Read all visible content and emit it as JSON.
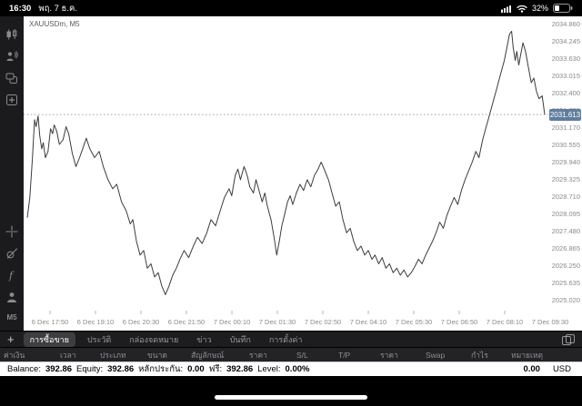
{
  "status_bar": {
    "time": "16:30",
    "date": "พฤ. 7 ธ.ค.",
    "battery_percent": "32%"
  },
  "sidebar": {
    "timeframe": "M5",
    "icons": [
      "bar-chart",
      "broadcast-user",
      "chat",
      "add-window",
      "crosshair",
      "objects",
      "indicators",
      "profile"
    ]
  },
  "chart": {
    "symbol_label": "XAUUSDm, M5"
  },
  "chart_data": {
    "type": "line",
    "title": "XAUUSDm, M5",
    "current_price": "2031.613",
    "ylim": [
      2024.5,
      2035.11
    ],
    "grid": "off",
    "legend": "none",
    "y_ticks": [
      "2034.860",
      "2034.245",
      "2033.630",
      "2033.015",
      "2032.400",
      "2031.785",
      "2031.170",
      "2030.555",
      "2029.940",
      "2029.325",
      "2028.710",
      "2028.095",
      "2027.480",
      "2026.865",
      "2026.250",
      "2025.635",
      "2025.020"
    ],
    "x_ticks": [
      "6 Dec 17:50",
      "6 Dec 19:10",
      "6 Dec 20:30",
      "6 Dec 21:50",
      "7 Dec 00:10",
      "7 Dec 01:30",
      "7 Dec 02:50",
      "7 Dec 04:10",
      "7 Dec 05:30",
      "7 Dec 06:50",
      "7 Dec 08:10",
      "7 Dec 09:30"
    ],
    "series": [
      {
        "name": "XAUUSDm close (M5)",
        "points": [
          [
            0.0,
            2027.94
          ],
          [
            0.005,
            2028.66
          ],
          [
            0.01,
            2030.08
          ],
          [
            0.014,
            2031.43
          ],
          [
            0.017,
            2031.18
          ],
          [
            0.021,
            2031.56
          ],
          [
            0.024,
            2030.86
          ],
          [
            0.028,
            2030.39
          ],
          [
            0.031,
            2030.61
          ],
          [
            0.035,
            2030.08
          ],
          [
            0.04,
            2030.3
          ],
          [
            0.045,
            2031.11
          ],
          [
            0.049,
            2030.93
          ],
          [
            0.052,
            2031.24
          ],
          [
            0.057,
            2031.02
          ],
          [
            0.062,
            2030.55
          ],
          [
            0.069,
            2030.71
          ],
          [
            0.075,
            2031.18
          ],
          [
            0.08,
            2030.93
          ],
          [
            0.087,
            2030.23
          ],
          [
            0.094,
            2029.76
          ],
          [
            0.101,
            2030.08
          ],
          [
            0.107,
            2030.39
          ],
          [
            0.114,
            2030.77
          ],
          [
            0.121,
            2030.39
          ],
          [
            0.13,
            2030.08
          ],
          [
            0.139,
            2030.3
          ],
          [
            0.147,
            2029.76
          ],
          [
            0.156,
            2029.29
          ],
          [
            0.165,
            2028.97
          ],
          [
            0.173,
            2029.13
          ],
          [
            0.182,
            2028.5
          ],
          [
            0.191,
            2028.19
          ],
          [
            0.199,
            2027.72
          ],
          [
            0.204,
            2027.87
          ],
          [
            0.211,
            2027.09
          ],
          [
            0.218,
            2026.61
          ],
          [
            0.225,
            2026.77
          ],
          [
            0.232,
            2026.14
          ],
          [
            0.239,
            2026.3
          ],
          [
            0.246,
            2025.83
          ],
          [
            0.253,
            2025.98
          ],
          [
            0.26,
            2025.51
          ],
          [
            0.267,
            2025.2
          ],
          [
            0.274,
            2025.51
          ],
          [
            0.281,
            2025.89
          ],
          [
            0.288,
            2026.14
          ],
          [
            0.295,
            2026.46
          ],
          [
            0.303,
            2026.77
          ],
          [
            0.312,
            2026.52
          ],
          [
            0.321,
            2026.93
          ],
          [
            0.329,
            2027.24
          ],
          [
            0.338,
            2027.02
          ],
          [
            0.347,
            2027.4
          ],
          [
            0.355,
            2027.87
          ],
          [
            0.364,
            2027.65
          ],
          [
            0.373,
            2028.19
          ],
          [
            0.381,
            2028.66
          ],
          [
            0.39,
            2028.97
          ],
          [
            0.395,
            2028.72
          ],
          [
            0.402,
            2029.45
          ],
          [
            0.407,
            2029.67
          ],
          [
            0.412,
            2029.29
          ],
          [
            0.419,
            2029.76
          ],
          [
            0.425,
            2029.45
          ],
          [
            0.43,
            2029.04
          ],
          [
            0.437,
            2028.82
          ],
          [
            0.442,
            2029.29
          ],
          [
            0.447,
            2028.97
          ],
          [
            0.454,
            2028.5
          ],
          [
            0.459,
            2028.82
          ],
          [
            0.464,
            2028.35
          ],
          [
            0.471,
            2027.87
          ],
          [
            0.477,
            2027.24
          ],
          [
            0.482,
            2026.61
          ],
          [
            0.487,
            2027.09
          ],
          [
            0.492,
            2027.65
          ],
          [
            0.497,
            2028.03
          ],
          [
            0.503,
            2028.5
          ],
          [
            0.508,
            2028.72
          ],
          [
            0.513,
            2028.41
          ],
          [
            0.52,
            2028.82
          ],
          [
            0.527,
            2029.13
          ],
          [
            0.534,
            2028.91
          ],
          [
            0.541,
            2029.29
          ],
          [
            0.548,
            2029.04
          ],
          [
            0.555,
            2029.45
          ],
          [
            0.562,
            2029.67
          ],
          [
            0.568,
            2029.92
          ],
          [
            0.575,
            2029.61
          ],
          [
            0.582,
            2029.29
          ],
          [
            0.589,
            2028.82
          ],
          [
            0.596,
            2028.35
          ],
          [
            0.603,
            2028.5
          ],
          [
            0.61,
            2027.87
          ],
          [
            0.617,
            2027.4
          ],
          [
            0.624,
            2027.56
          ],
          [
            0.631,
            2027.09
          ],
          [
            0.638,
            2026.77
          ],
          [
            0.645,
            2026.93
          ],
          [
            0.652,
            2026.61
          ],
          [
            0.659,
            2026.77
          ],
          [
            0.666,
            2026.46
          ],
          [
            0.672,
            2026.61
          ],
          [
            0.679,
            2026.3
          ],
          [
            0.686,
            2026.52
          ],
          [
            0.693,
            2026.14
          ],
          [
            0.7,
            2026.3
          ],
          [
            0.707,
            2025.98
          ],
          [
            0.714,
            2026.14
          ],
          [
            0.721,
            2025.89
          ],
          [
            0.728,
            2026.08
          ],
          [
            0.735,
            2025.83
          ],
          [
            0.742,
            2025.98
          ],
          [
            0.749,
            2026.2
          ],
          [
            0.756,
            2026.46
          ],
          [
            0.763,
            2026.3
          ],
          [
            0.77,
            2026.61
          ],
          [
            0.776,
            2026.83
          ],
          [
            0.783,
            2027.09
          ],
          [
            0.79,
            2027.4
          ],
          [
            0.797,
            2027.78
          ],
          [
            0.804,
            2027.56
          ],
          [
            0.811,
            2028.03
          ],
          [
            0.818,
            2028.35
          ],
          [
            0.825,
            2028.66
          ],
          [
            0.832,
            2028.41
          ],
          [
            0.839,
            2028.91
          ],
          [
            0.846,
            2029.29
          ],
          [
            0.853,
            2029.61
          ],
          [
            0.86,
            2029.92
          ],
          [
            0.867,
            2030.3
          ],
          [
            0.873,
            2030.08
          ],
          [
            0.88,
            2030.71
          ],
          [
            0.887,
            2031.18
          ],
          [
            0.894,
            2031.65
          ],
          [
            0.901,
            2032.12
          ],
          [
            0.908,
            2032.59
          ],
          [
            0.915,
            2033.07
          ],
          [
            0.922,
            2033.54
          ],
          [
            0.927,
            2034.01
          ],
          [
            0.932,
            2034.48
          ],
          [
            0.936,
            2034.58
          ],
          [
            0.939,
            2034.01
          ],
          [
            0.943,
            2033.54
          ],
          [
            0.946,
            2033.86
          ],
          [
            0.95,
            2033.38
          ],
          [
            0.953,
            2033.7
          ],
          [
            0.958,
            2034.17
          ],
          [
            0.963,
            2033.86
          ],
          [
            0.969,
            2033.23
          ],
          [
            0.974,
            2032.75
          ],
          [
            0.979,
            2032.91
          ],
          [
            0.984,
            2032.44
          ],
          [
            0.989,
            2032.18
          ],
          [
            0.995,
            2032.28
          ],
          [
            1.0,
            2031.61
          ]
        ]
      }
    ]
  },
  "tab_bar": {
    "tabs": [
      {
        "label": "การซื้อขาย",
        "selected": true
      },
      {
        "label": "ประวัติ",
        "selected": false
      },
      {
        "label": "กล่องจดหมาย",
        "selected": false
      },
      {
        "label": "ข่าว",
        "selected": false
      },
      {
        "label": "บันทึก",
        "selected": false
      },
      {
        "label": "การตั้งค่า",
        "selected": false
      }
    ]
  },
  "trade_table": {
    "columns": [
      "ค่าเงิน",
      "เวลา",
      "ประเภท",
      "ขนาด",
      "สัญลักษณ์",
      "ราคา",
      "S/L",
      "T/P",
      "ราคา",
      "Swap",
      "กำไร",
      "หมายเหตุ"
    ]
  },
  "account_bar": {
    "metrics": [
      {
        "label": "Balance:",
        "value": "392.86"
      },
      {
        "label": "Equity:",
        "value": "392.86"
      },
      {
        "label": "หลักประกัน:",
        "value": "0.00"
      },
      {
        "label": "ฟรี:",
        "value": "392.86"
      },
      {
        "label": "Level:",
        "value": "0.00%"
      }
    ],
    "total": "0.00",
    "currency": "USD"
  },
  "colors": {
    "chart_line": "#3c3c3c",
    "price_tag_bg": "#5f7d9e",
    "selected_tab_bg": "#3e3e42",
    "dark_bg": "#1d1d1f",
    "muted_text": "#98989d"
  }
}
